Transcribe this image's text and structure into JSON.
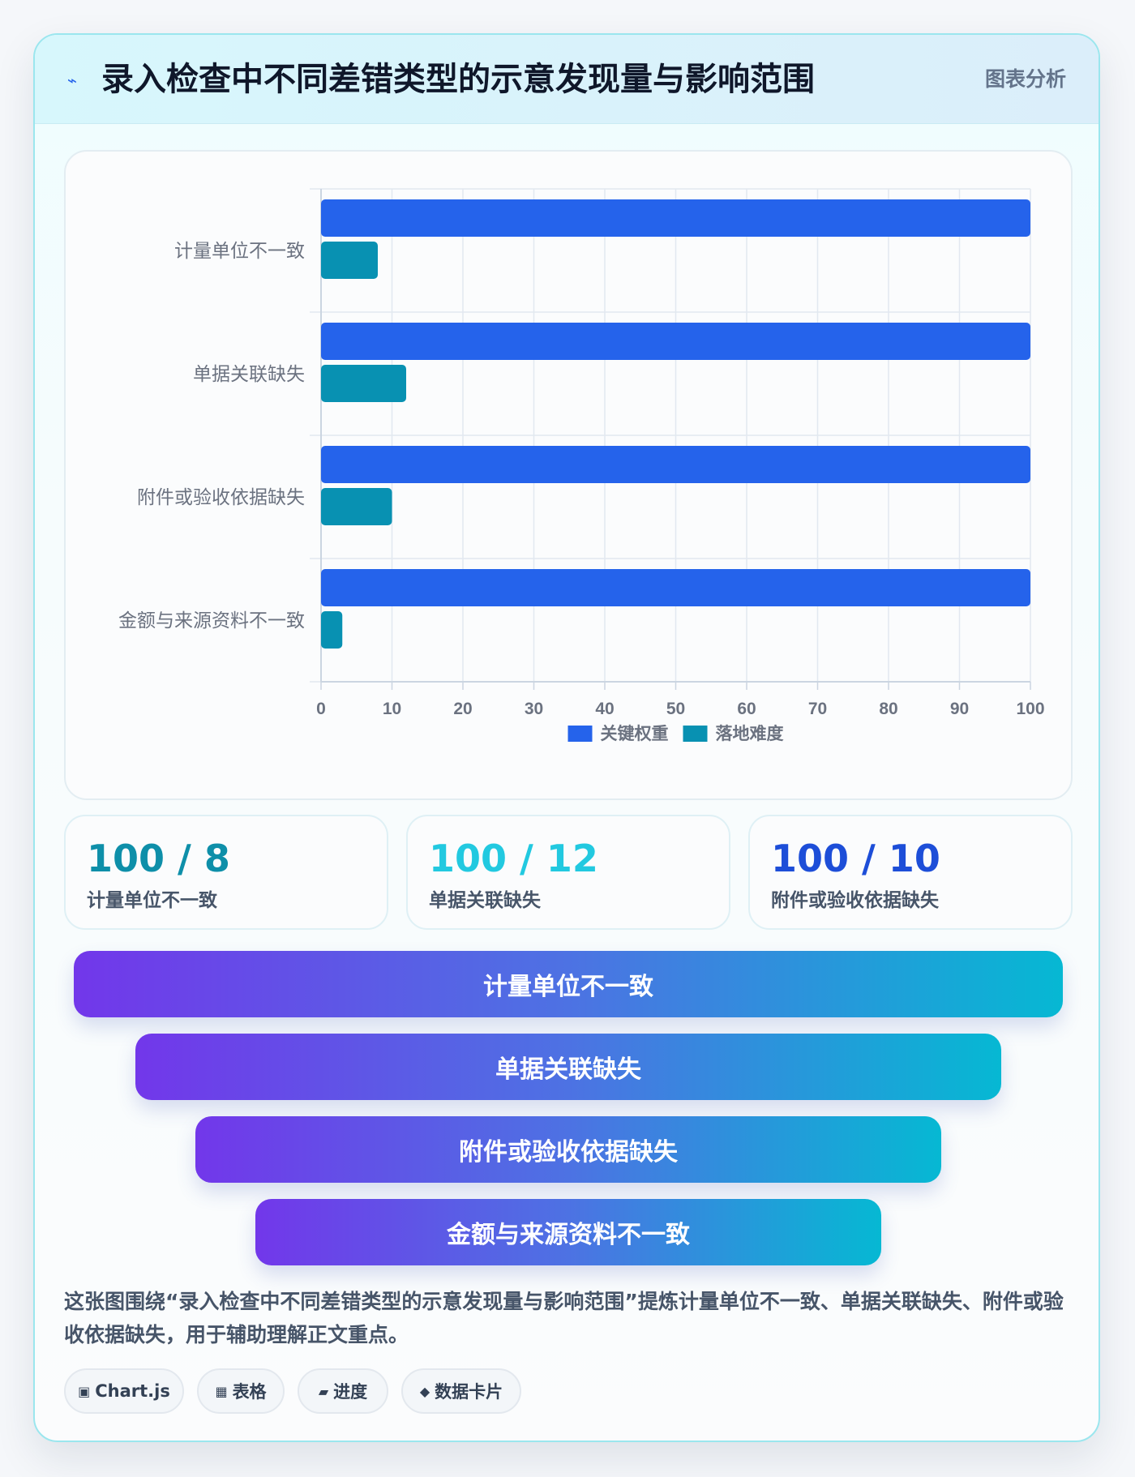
{
  "header": {
    "icon": "lightning-icon",
    "title": "录入检查中不同差错类型的示意发现量与影响范围",
    "tag": "图表分析"
  },
  "chart_data": {
    "type": "bar",
    "orientation": "horizontal",
    "categories": [
      "计量单位不一致",
      "单据关联缺失",
      "附件或验收依据缺失",
      "金额与来源资料不一致"
    ],
    "series": [
      {
        "name": "关键权重",
        "values": [
          100,
          100,
          100,
          100
        ],
        "color": "#2563eb"
      },
      {
        "name": "落地难度",
        "values": [
          8,
          12,
          10,
          3
        ],
        "color": "#0891b2"
      }
    ],
    "xlim": [
      0,
      100
    ],
    "xticks": [
      0,
      10,
      20,
      30,
      40,
      50,
      60,
      70,
      80,
      90,
      100
    ],
    "grid": true,
    "legend_position": "bottom",
    "title": "",
    "xlabel": "",
    "ylabel": ""
  },
  "stats": [
    {
      "value": "100 / 8",
      "label": "计量单位不一致",
      "color": "#0e8fa9"
    },
    {
      "value": "100 / 12",
      "label": "单据关联缺失",
      "color": "#22c9e0"
    },
    {
      "value": "100 / 10",
      "label": "附件或验收依据缺失",
      "color": "#1d4ed8"
    }
  ],
  "funnel": [
    "计量单位不一致",
    "单据关联缺失",
    "附件或验收依据缺失",
    "金额与来源资料不一致"
  ],
  "summary": "这张图围绕“录入检查中不同差错类型的示意发现量与影响范围”提炼计量单位不一致、单据关联缺失、附件或验收依据缺失，用于辅助理解正文重点。",
  "tags": [
    {
      "icon": "chart-icon",
      "label": "Chart.js"
    },
    {
      "icon": "table-icon",
      "label": "表格"
    },
    {
      "icon": "progress-icon",
      "label": "进度"
    },
    {
      "icon": "data-card-icon",
      "label": "数据卡片"
    }
  ]
}
